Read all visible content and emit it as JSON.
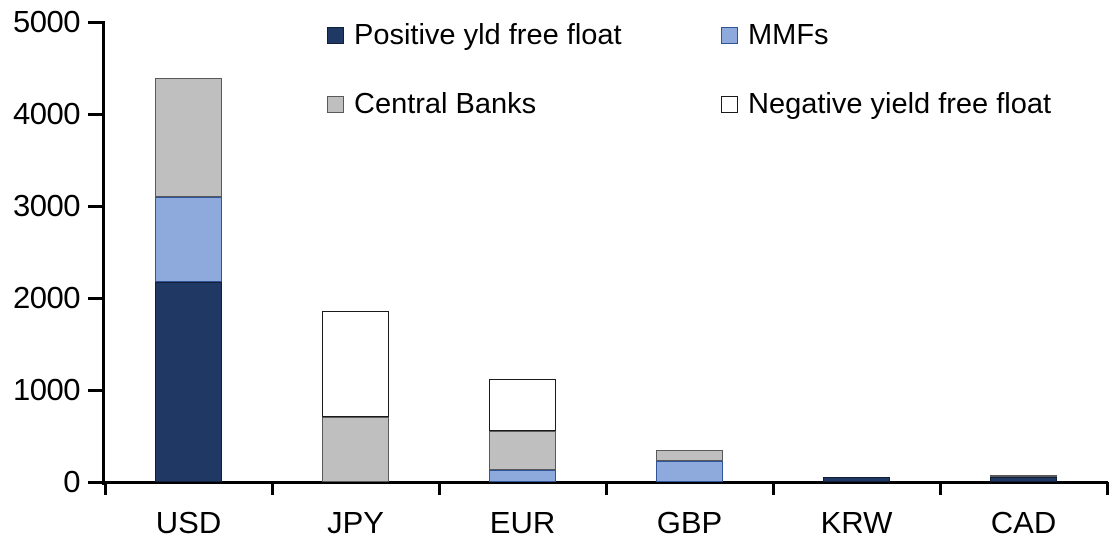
{
  "chart_data": {
    "type": "bar",
    "stacked": true,
    "title": "",
    "xlabel": "",
    "ylabel": "",
    "categories": [
      "USD",
      "JPY",
      "EUR",
      "GBP",
      "KRW",
      "CAD"
    ],
    "series": [
      {
        "name": "Positive yld free float",
        "color": "#1F3864",
        "border_color": "#121F3B",
        "values": [
          2170,
          0,
          0,
          0,
          50,
          50
        ]
      },
      {
        "name": "MMFs",
        "color": "#8EA9DB",
        "border_color": "#2F5597",
        "values": [
          930,
          0,
          130,
          230,
          0,
          0
        ]
      },
      {
        "name": "Central Banks",
        "color": "#BFBFBF",
        "border_color": "#595959",
        "values": [
          1290,
          710,
          430,
          120,
          0,
          30
        ]
      },
      {
        "name": "Negative yield free float",
        "color": "#FFFFFF",
        "border_color": "#1A1A1A",
        "values": [
          0,
          1150,
          560,
          0,
          0,
          0
        ]
      }
    ],
    "totals": [
      4390,
      1860,
      1120,
      350,
      50,
      80
    ],
    "ylim": [
      0,
      5000
    ],
    "yticks": [
      0,
      1000,
      2000,
      3000,
      4000,
      5000
    ],
    "grid": false,
    "legend": {
      "position": "top-center",
      "columns": 2,
      "row_order": [
        "Positive yld free float",
        "MMFs",
        "Central Banks",
        "Negative yield free float"
      ]
    },
    "axis_color": "#000000",
    "background_color": "#FFFFFF",
    "text_color": "#000000"
  }
}
